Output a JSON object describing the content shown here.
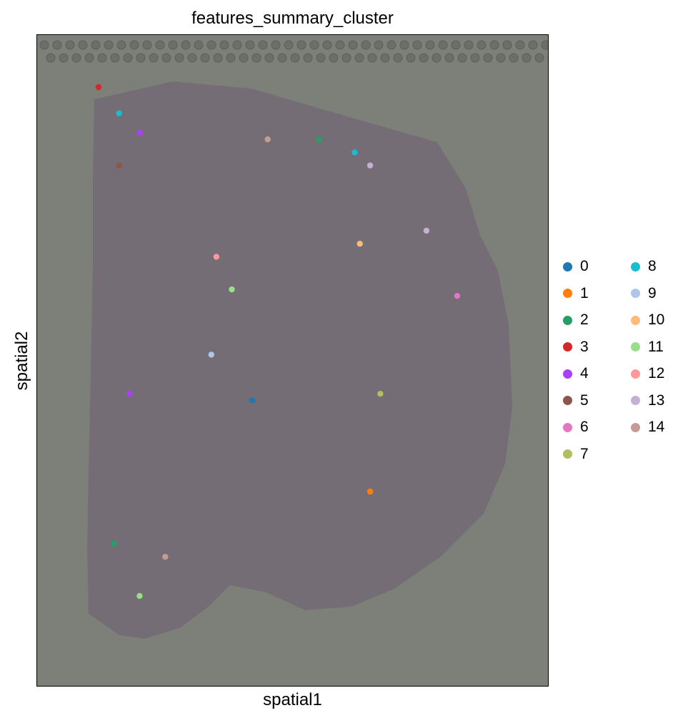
{
  "chart_data": {
    "type": "scatter",
    "title": "features_summary_cluster",
    "xlabel": "spatial1",
    "ylabel": "spatial2",
    "background": "tissue histology image",
    "grid": false,
    "xticks": false,
    "yticks": false,
    "legend_position": "right, outside plot, two columns",
    "categories": [
      "0",
      "1",
      "2",
      "3",
      "4",
      "5",
      "6",
      "7",
      "8",
      "9",
      "10",
      "11",
      "12",
      "13",
      "14"
    ],
    "colors": [
      "#1f77b4",
      "#ff7f0e",
      "#279e68",
      "#d62728",
      "#aa40fc",
      "#8c564b",
      "#e377c2",
      "#b5bd61",
      "#17becf",
      "#aec7e8",
      "#ffbb78",
      "#98df8a",
      "#ff9896",
      "#c5b0d5",
      "#c49c94"
    ],
    "spots": [
      {
        "cluster": "3",
        "x": 0.12,
        "y": 0.08
      },
      {
        "cluster": "8",
        "x": 0.16,
        "y": 0.12
      },
      {
        "cluster": "4",
        "x": 0.2,
        "y": 0.15
      },
      {
        "cluster": "5",
        "x": 0.16,
        "y": 0.2
      },
      {
        "cluster": "14",
        "x": 0.45,
        "y": 0.16
      },
      {
        "cluster": "8",
        "x": 0.62,
        "y": 0.18
      },
      {
        "cluster": "13",
        "x": 0.65,
        "y": 0.2
      },
      {
        "cluster": "2",
        "x": 0.55,
        "y": 0.16
      },
      {
        "cluster": "12",
        "x": 0.35,
        "y": 0.34
      },
      {
        "cluster": "11",
        "x": 0.38,
        "y": 0.39
      },
      {
        "cluster": "10",
        "x": 0.63,
        "y": 0.32
      },
      {
        "cluster": "6",
        "x": 0.82,
        "y": 0.4
      },
      {
        "cluster": "13",
        "x": 0.76,
        "y": 0.3
      },
      {
        "cluster": "0",
        "x": 0.42,
        "y": 0.56
      },
      {
        "cluster": "9",
        "x": 0.34,
        "y": 0.49
      },
      {
        "cluster": "7",
        "x": 0.67,
        "y": 0.55
      },
      {
        "cluster": "1",
        "x": 0.65,
        "y": 0.7
      },
      {
        "cluster": "14",
        "x": 0.25,
        "y": 0.8
      },
      {
        "cluster": "11",
        "x": 0.2,
        "y": 0.86
      },
      {
        "cluster": "4",
        "x": 0.18,
        "y": 0.55
      },
      {
        "cluster": "2",
        "x": 0.15,
        "y": 0.78
      }
    ]
  }
}
